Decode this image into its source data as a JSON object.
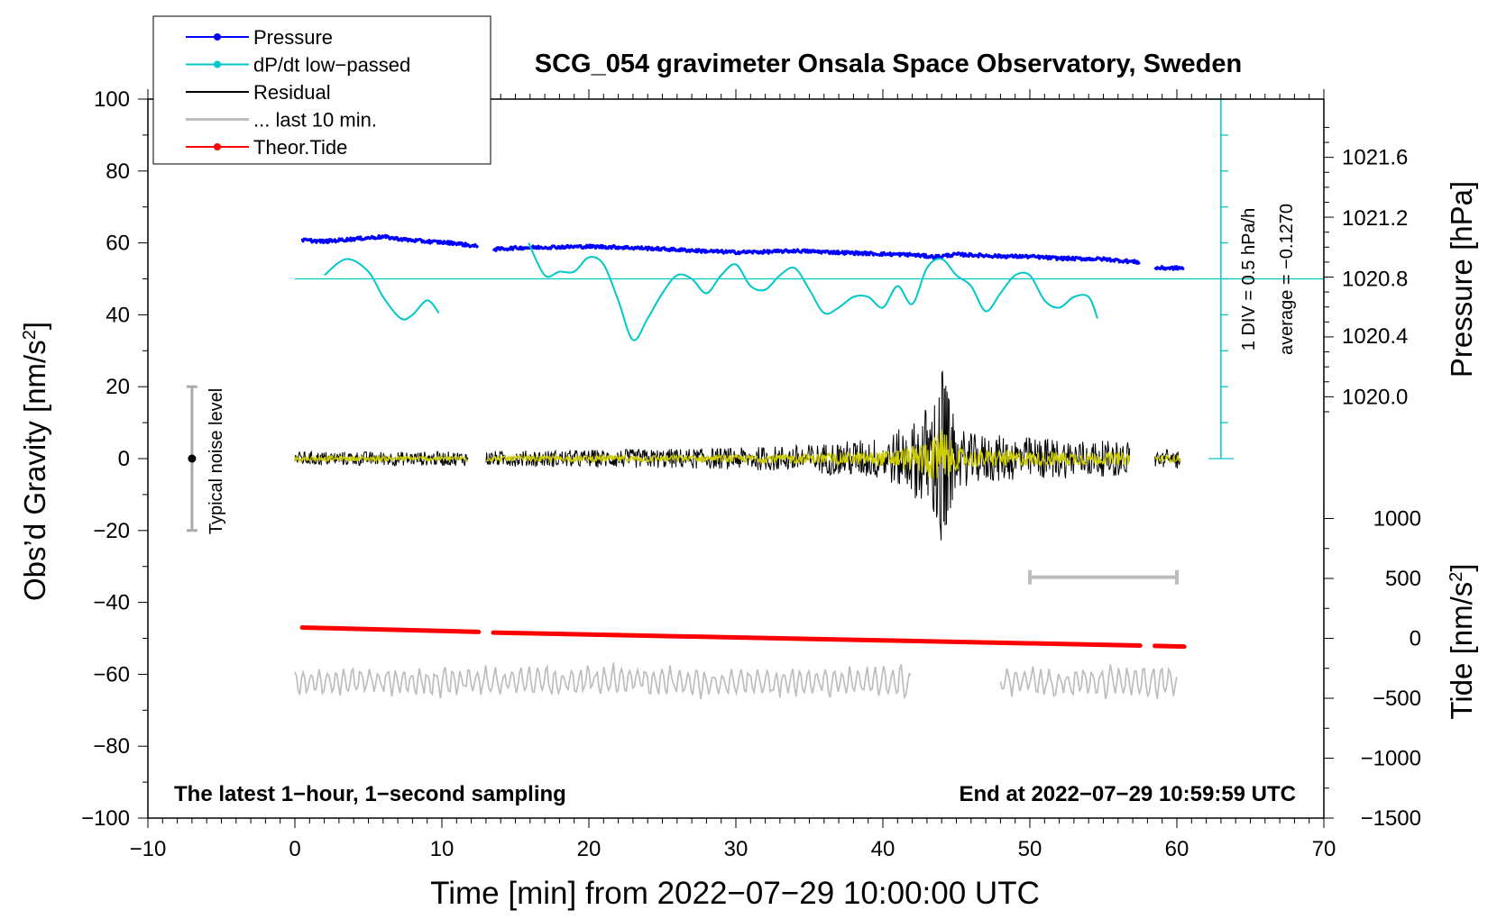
{
  "chart_data": {
    "type": "line",
    "title": "SCG_054 gravimeter Onsala Space Observatory, Sweden",
    "xlabel": "Time [min] from 2022−07−29 10:00:00 UTC",
    "ylabel": "Obs’d Gravity [nm/s",
    "ylabel_sup": "2",
    "ylabel_close": "]",
    "y2label_pressure": "Pressure [hPa]",
    "y2label_tide": "Tide [nm/s",
    "y2label_tide_sup": "2",
    "y2label_tide_close": "]",
    "xlim": [
      -10,
      70
    ],
    "ylim": [
      -100,
      100
    ],
    "xticks": [
      -10,
      0,
      10,
      20,
      30,
      40,
      50,
      60,
      70
    ],
    "xtick_labels": [
      "−10",
      "0",
      "10",
      "20",
      "30",
      "40",
      "50",
      "60",
      "70"
    ],
    "yticks": [
      -100,
      -80,
      -60,
      -40,
      -20,
      0,
      20,
      40,
      60,
      80,
      100
    ],
    "ytick_labels": [
      "−100",
      "−80",
      "−60",
      "−40",
      "−20",
      "0",
      "20",
      "40",
      "60",
      "80",
      "100"
    ],
    "pressure_axis": {
      "ticks": [
        1020.0,
        1020.4,
        1020.8,
        1021.2,
        1021.6
      ],
      "tick_labels": [
        "1020.0",
        "1020.4",
        "1020.8",
        "1021.2",
        "1021.6"
      ],
      "gravity_equiv": [
        17.2,
        34.1,
        50.0,
        66.9,
        83.8
      ]
    },
    "tide_axis": {
      "ticks": [
        1000,
        500,
        0,
        -500,
        -1000,
        -1500
      ],
      "tick_labels": [
        "1000",
        "500",
        "0",
        "−500",
        "−1000",
        "−1500"
      ],
      "gravity_equiv": [
        -16.7,
        -33.3,
        -50.0,
        -66.7,
        -83.3,
        -100.0
      ]
    },
    "legend": [
      {
        "label": "Pressure",
        "color": "#0000ff",
        "marker": true
      },
      {
        "label": "dP/dt low−passed",
        "color": "#00c8c8",
        "marker": true
      },
      {
        "label": "Residual",
        "color": "#000000",
        "marker": false
      },
      {
        "label": "... last 10 min.",
        "color": "#bdbdbd",
        "marker": false
      },
      {
        "label": "Theor.Tide",
        "color": "#ff0000",
        "marker": true
      }
    ],
    "legend_position": "top-left",
    "annotations": {
      "bottom_left": "The latest 1−hour, 1−second sampling",
      "bottom_right": "End at 2022−07−29 10:59:59 UTC",
      "noise_label": "Typical noise level",
      "div_label": "1 DIV = 0.5 hPa/h",
      "average_label": "average = −0.1270"
    },
    "noise_bar": {
      "x": -7,
      "y_low": -20,
      "y_high": 20
    },
    "scale_bar_10min": {
      "x_start": 50,
      "x_end": 60,
      "y": -33
    },
    "dpdt_scale": {
      "x": 63,
      "y_base": 0,
      "y_top": 100,
      "divisions": 10,
      "mid_line_y": 50
    },
    "series": [
      {
        "name": "Pressure",
        "color": "#0000ff",
        "segments": [
          {
            "x": [
              0.5,
              2,
              4,
              6,
              7.5,
              9,
              11,
              12.5
            ],
            "y": [
              60.8,
              60.4,
              61.1,
              61.7,
              60.9,
              60.4,
              59.9,
              58.9
            ]
          },
          {
            "x": [
              13.5,
              15,
              17,
              20,
              22,
              24,
              26,
              28,
              30,
              32,
              34,
              36,
              38,
              40,
              42,
              43.5,
              45,
              48,
              50,
              52,
              55,
              57.5
            ],
            "y": [
              58.2,
              58.6,
              58.8,
              59.0,
              58.8,
              58.5,
              58.1,
              57.7,
              57.4,
              57.5,
              57.8,
              57.5,
              57.2,
              56.9,
              56.7,
              56.1,
              56.8,
              56.3,
              56.2,
              55.7,
              55.5,
              54.6
            ]
          },
          {
            "x": [
              58.5,
              60.5
            ],
            "y": [
              53.0,
              53.0
            ]
          }
        ]
      },
      {
        "name": "dP/dt low-passed",
        "color": "#00c8c8",
        "segments": [
          {
            "x": [
              2.0,
              3.5,
              5.0,
              6.0,
              7.2,
              8.0,
              9.0,
              9.8
            ],
            "y": [
              51,
              55.5,
              52,
              45,
              39,
              40,
              44,
              40.5
            ]
          },
          {
            "x": [
              15.9,
              17,
              18,
              19,
              20,
              21,
              22,
              23,
              24,
              25,
              26,
              27,
              28,
              29,
              30,
              31,
              32,
              33,
              34,
              35,
              36,
              37,
              38,
              39,
              40,
              41,
              42,
              43,
              44,
              45,
              46,
              47,
              48,
              49,
              50,
              51,
              52,
              53,
              54,
              54.6
            ],
            "y": [
              60,
              51,
              52,
              52,
              56,
              54,
              44,
              33,
              39,
              46,
              51,
              50,
              46,
              51,
              54,
              48,
              47,
              51,
              53,
              47,
              40.5,
              42,
              45,
              45,
              42,
              48,
              43,
              53,
              55.5,
              51,
              48,
              41,
              46,
              51,
              51,
              44,
              42,
              45,
              45,
              39
            ]
          }
        ]
      },
      {
        "name": "Residual",
        "color": "#000000",
        "envelope": {
          "x": [
            0,
            10,
            20,
            30,
            35,
            40,
            42,
            43.5,
            44,
            44.5,
            45,
            46,
            50,
            55,
            57,
            58.5,
            60
          ],
          "amplitude": [
            2,
            2,
            2.5,
            3,
            4,
            6,
            10,
            18,
            25,
            17,
            9,
            7,
            6,
            5,
            5,
            2.5,
            3
          ]
        },
        "gaps": [
          [
            11.8,
            13.0
          ],
          [
            56.8,
            58.5
          ]
        ]
      },
      {
        "name": "Theor.Tide",
        "color": "#ff0000",
        "segments": [
          {
            "x": [
              0.5,
              12.5
            ],
            "y": [
              -47.0,
              -48.2
            ]
          },
          {
            "x": [
              13.5,
              57.5
            ],
            "y": [
              -48.4,
              -52.0
            ]
          },
          {
            "x": [
              58.5,
              60.5
            ],
            "y": [
              -52.1,
              -52.3
            ]
          }
        ]
      },
      {
        "name": "... last 10 min.",
        "color": "#bdbdbd",
        "offset_y": -62,
        "segments": [
          {
            "x": [
              0,
              42
            ]
          },
          {
            "x": [
              48,
              60
            ]
          }
        ]
      }
    ]
  }
}
